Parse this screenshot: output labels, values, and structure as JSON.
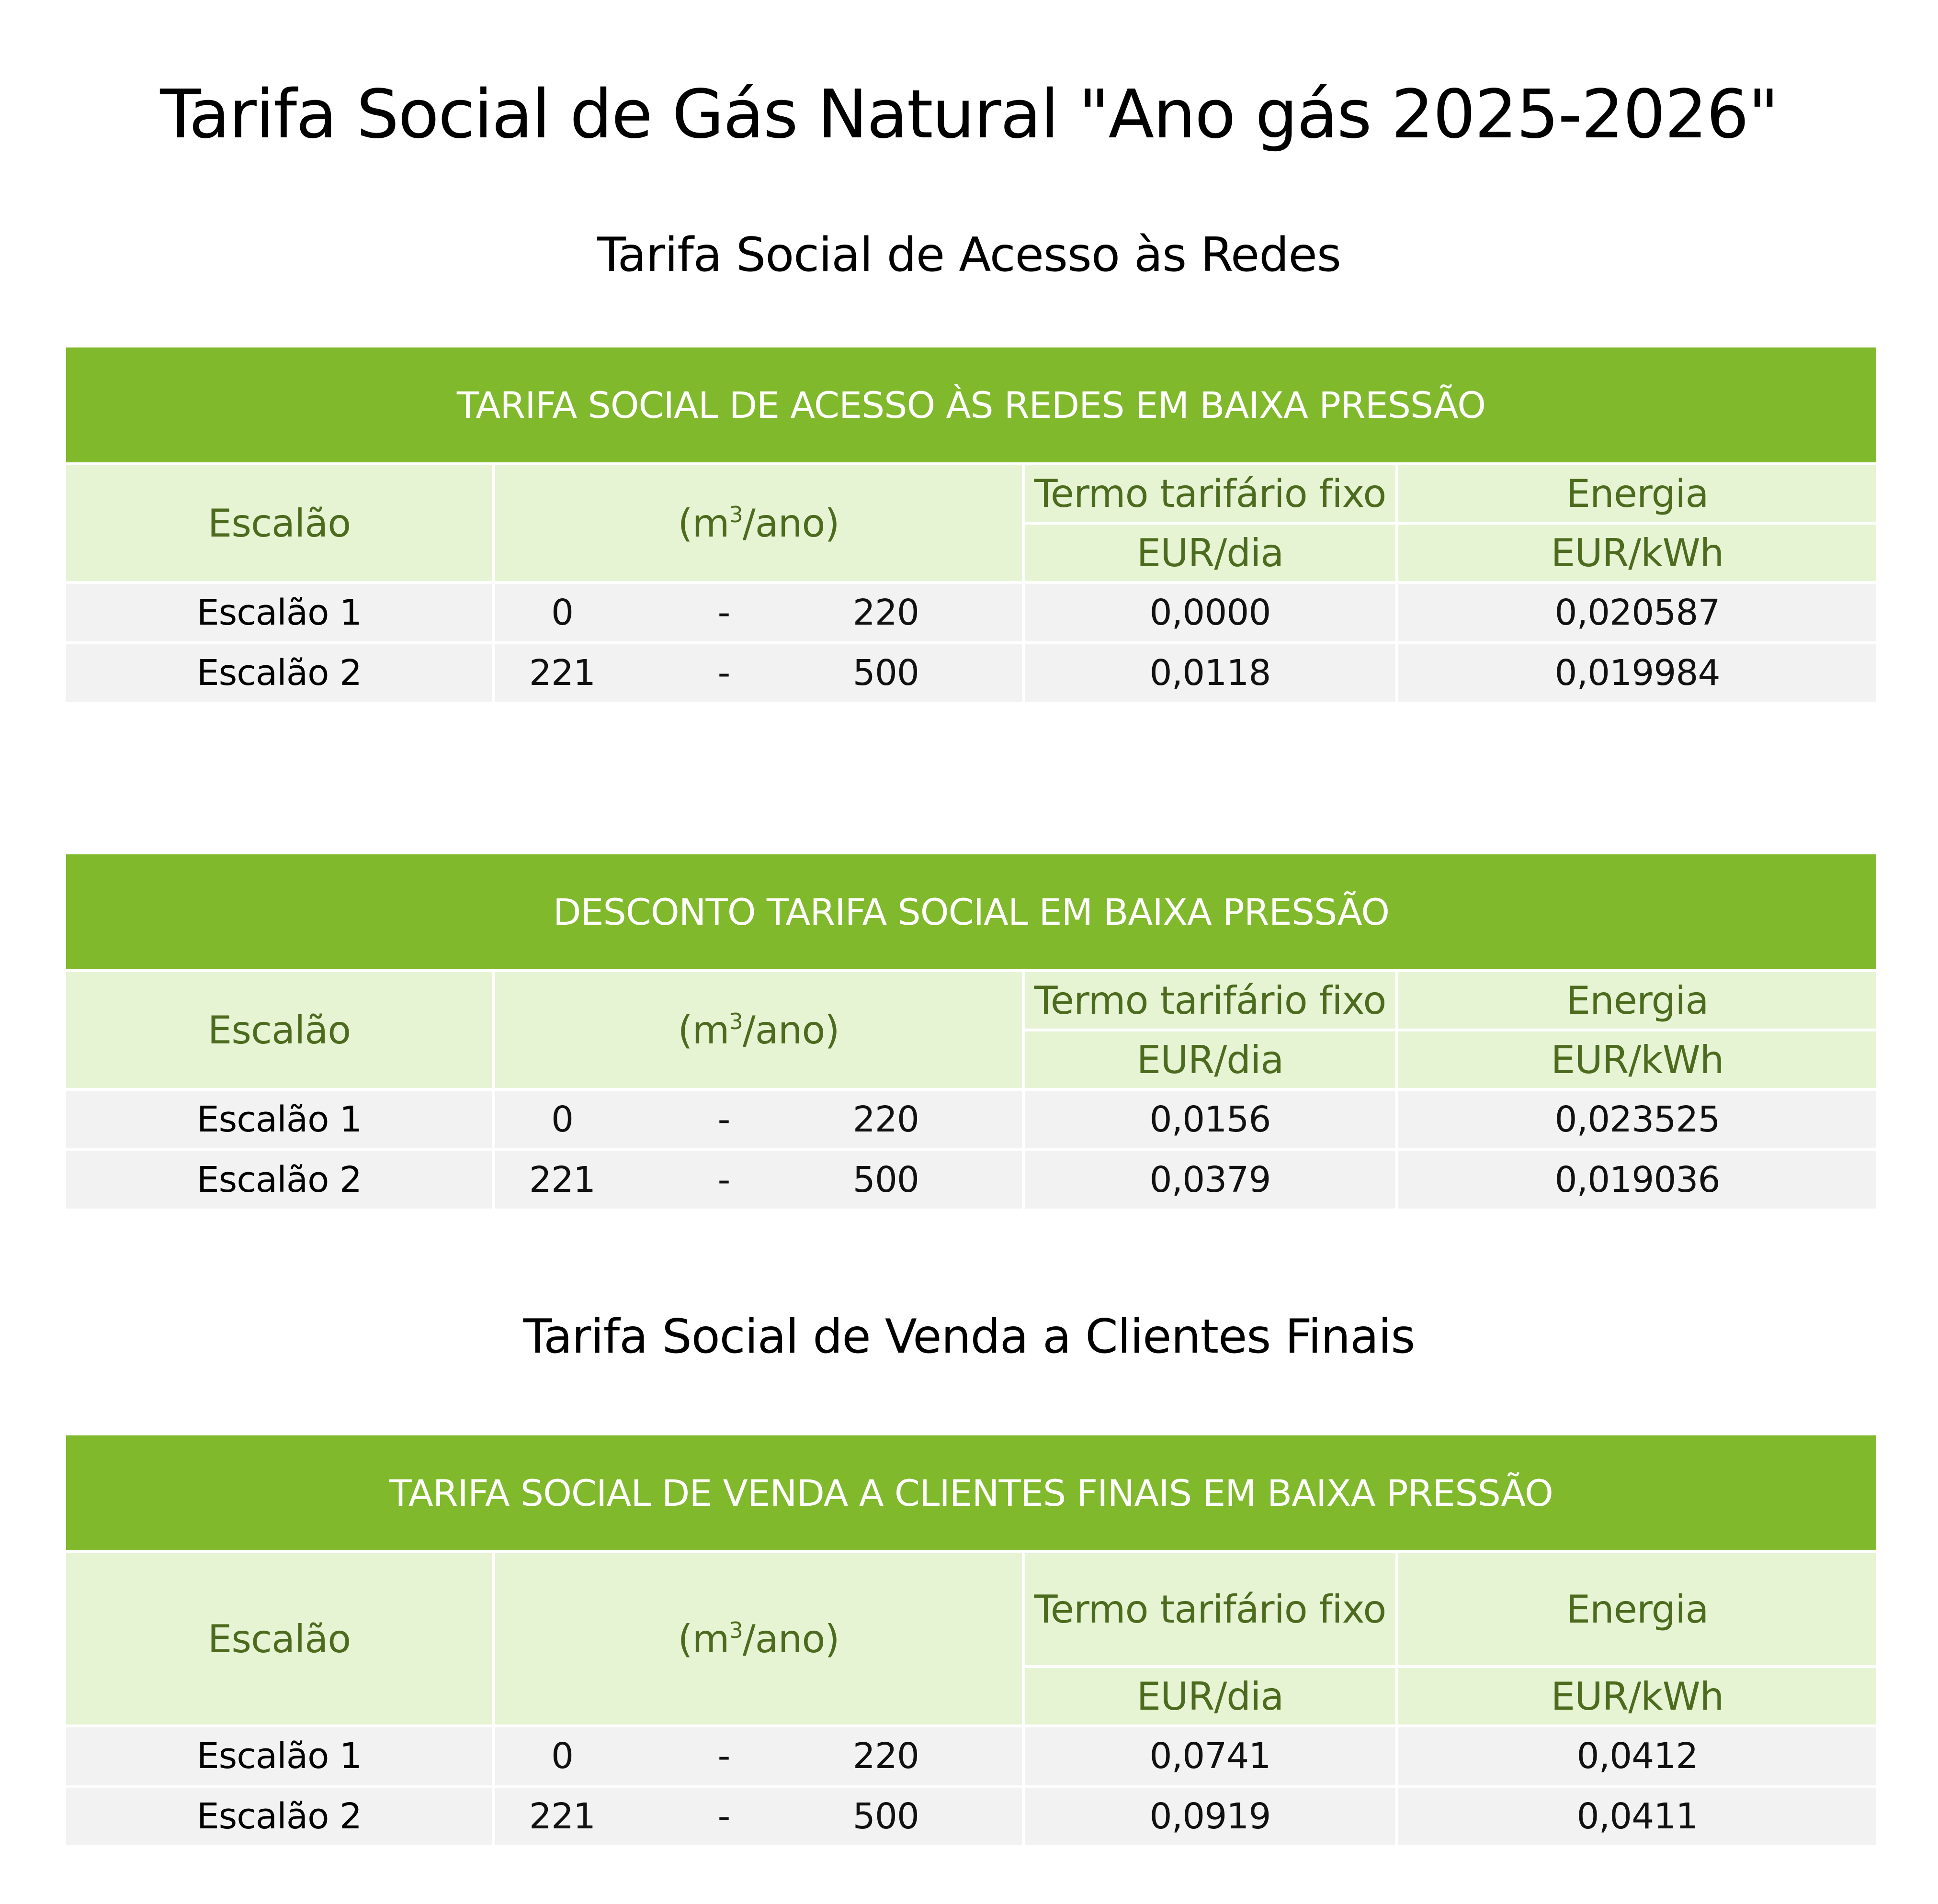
{
  "main_title": "Tarifa Social de Gás Natural \"Ano gás 2025-2026\"",
  "subtitle_access": "Tarifa Social de Acesso às Redes",
  "subtitle_sale": "Tarifa Social de Venda a Clientes Finais",
  "headers": {
    "escalao": "Escalão",
    "volume_prefix": "(m",
    "volume_sup": "3",
    "volume_suffix": "/ano)",
    "fixed_term": "Termo tarifário fixo",
    "energy": "Energia",
    "fixed_unit": "EUR/dia",
    "energy_unit": "EUR/kWh",
    "dash": "-"
  },
  "tables": [
    {
      "title": "TARIFA SOCIAL DE ACESSO ÀS REDES EM BAIXA PRESSÃO",
      "rows": [
        {
          "escalao": "Escalão 1",
          "from": "0",
          "to": "220",
          "fixed": "0,0000",
          "energy": "0,020587"
        },
        {
          "escalao": "Escalão 2",
          "from": "221",
          "to": "500",
          "fixed": "0,0118",
          "energy": "0,019984"
        }
      ]
    },
    {
      "title": "DESCONTO TARIFA SOCIAL EM BAIXA PRESSÃO",
      "rows": [
        {
          "escalao": "Escalão 1",
          "from": "0",
          "to": "220",
          "fixed": "0,0156",
          "energy": "0,023525"
        },
        {
          "escalao": "Escalão 2",
          "from": "221",
          "to": "500",
          "fixed": "0,0379",
          "energy": "0,019036"
        }
      ]
    },
    {
      "title": "TARIFA SOCIAL DE VENDA A CLIENTES FINAIS EM BAIXA PRESSÃO",
      "rows": [
        {
          "escalao": "Escalão 1",
          "from": "0",
          "to": "220",
          "fixed": "0,0741",
          "energy": "0,0412"
        },
        {
          "escalao": "Escalão 2",
          "from": "221",
          "to": "500",
          "fixed": "0,0919",
          "energy": "0,0411"
        }
      ]
    }
  ]
}
